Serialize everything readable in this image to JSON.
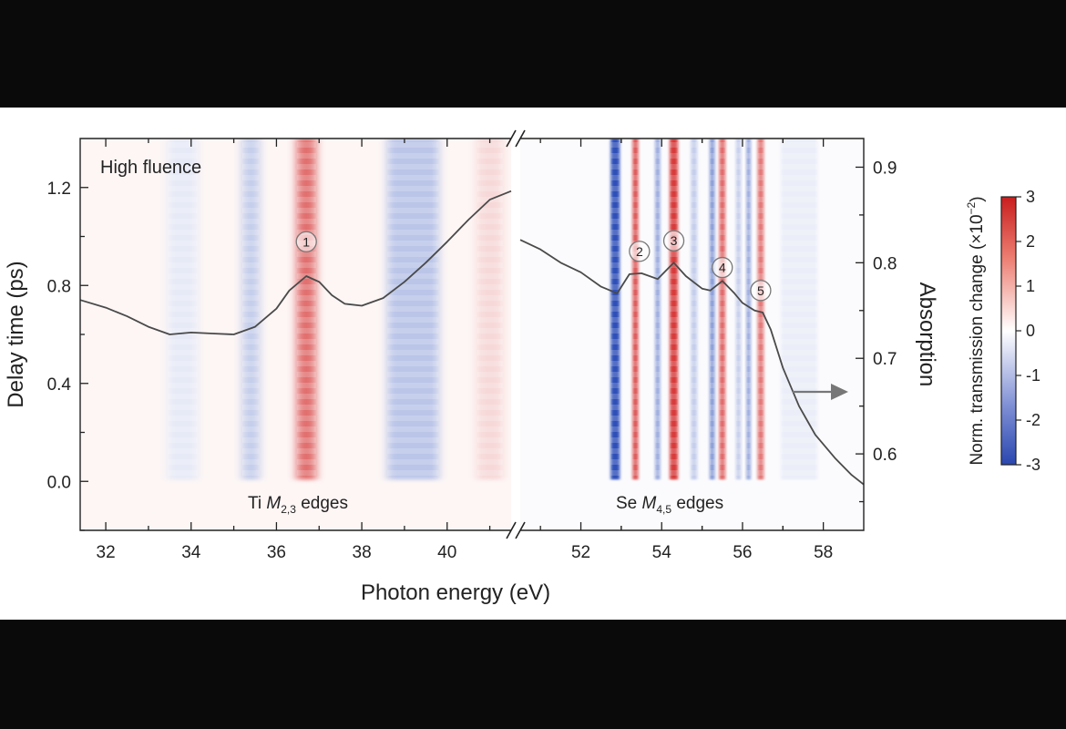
{
  "chart_data": {
    "type": "heatmap",
    "panel_label": "High fluence",
    "xlabel": "Photon energy (eV)",
    "ylabel": "Delay time (ps)",
    "y2label": "Absorption",
    "colorbar_label": "Norm. transmission change (×10",
    "colorbar_exponent": "−2",
    "colorbar_label_close": ")",
    "edge_labels": {
      "ti": {
        "prefix": "Ti ",
        "symbol": "M",
        "sub": "2,3",
        "suffix": " edges"
      },
      "se": {
        "prefix": "Se ",
        "symbol": "M",
        "sub": "4,5",
        "suffix": " edges"
      }
    },
    "axes": {
      "x_left": {
        "range": [
          31.4,
          41.5
        ],
        "ticks": [
          32,
          34,
          36,
          38,
          40
        ],
        "tick_labels": [
          "32",
          "34",
          "36",
          "38",
          "40"
        ]
      },
      "x_right": {
        "range": [
          50.5,
          59.0
        ],
        "ticks": [
          52,
          54,
          56,
          58
        ],
        "tick_labels": [
          "52",
          "54",
          "56",
          "58"
        ]
      },
      "y": {
        "range": [
          -0.2,
          1.4
        ],
        "ticks": [
          0.0,
          0.4,
          0.8,
          1.2
        ],
        "tick_labels": [
          "0.0",
          "0.4",
          "0.8",
          "1.2"
        ]
      },
      "y2": {
        "range": [
          0.52,
          0.93
        ],
        "ticks": [
          0.6,
          0.7,
          0.8,
          0.9
        ],
        "tick_labels": [
          "0.6",
          "0.7",
          "0.8",
          "0.9"
        ]
      },
      "colorbar": {
        "range": [
          -3,
          3
        ],
        "ticks": [
          3,
          2,
          1,
          0,
          -1,
          -2,
          -3
        ],
        "tick_labels": [
          "3",
          "2",
          "1",
          "0",
          "-1",
          "-2",
          "-3"
        ]
      }
    },
    "bands": {
      "left": [
        {
          "e": 33.8,
          "v": -0.2,
          "w": 0.7
        },
        {
          "e": 35.4,
          "v": -0.6,
          "w": 0.4
        },
        {
          "e": 36.7,
          "v": 1.8,
          "w": 0.45
        },
        {
          "e": 39.2,
          "v": -0.7,
          "w": 1.2
        },
        {
          "e": 41.0,
          "v": 0.35,
          "w": 0.6
        }
      ],
      "right": [
        {
          "e": 52.85,
          "v": -2.8,
          "w": 0.22
        },
        {
          "e": 53.35,
          "v": 2.2,
          "w": 0.14
        },
        {
          "e": 53.9,
          "v": -1.2,
          "w": 0.12
        },
        {
          "e": 54.3,
          "v": 2.6,
          "w": 0.2
        },
        {
          "e": 54.8,
          "v": -0.6,
          "w": 0.15
        },
        {
          "e": 55.25,
          "v": -1.5,
          "w": 0.12
        },
        {
          "e": 55.5,
          "v": 1.9,
          "w": 0.15
        },
        {
          "e": 55.9,
          "v": -0.6,
          "w": 0.12
        },
        {
          "e": 56.15,
          "v": -1.3,
          "w": 0.1
        },
        {
          "e": 56.45,
          "v": 1.7,
          "w": 0.15
        },
        {
          "e": 57.4,
          "v": -0.15,
          "w": 0.9
        }
      ]
    },
    "absorption": {
      "left": {
        "x": [
          31.4,
          32.0,
          32.5,
          33.0,
          33.5,
          34.0,
          34.5,
          35.0,
          35.5,
          36.0,
          36.3,
          36.7,
          37.0,
          37.3,
          37.6,
          38.0,
          38.5,
          39.0,
          39.5,
          40.0,
          40.5,
          41.0,
          41.5
        ],
        "y": [
          0.761,
          0.753,
          0.744,
          0.733,
          0.725,
          0.727,
          0.726,
          0.725,
          0.733,
          0.752,
          0.771,
          0.786,
          0.78,
          0.766,
          0.757,
          0.755,
          0.763,
          0.78,
          0.8,
          0.822,
          0.845,
          0.866,
          0.875
        ]
      },
      "right": {
        "x": [
          50.5,
          51.0,
          51.5,
          52.0,
          52.5,
          52.9,
          53.2,
          53.5,
          53.9,
          54.3,
          54.6,
          55.0,
          55.2,
          55.5,
          55.8,
          56.0,
          56.3,
          56.5,
          56.7,
          57.0,
          57.4,
          57.8,
          58.3,
          58.7,
          59.0
        ],
        "y": [
          0.824,
          0.814,
          0.8,
          0.79,
          0.775,
          0.768,
          0.788,
          0.789,
          0.783,
          0.8,
          0.786,
          0.773,
          0.771,
          0.781,
          0.768,
          0.758,
          0.75,
          0.748,
          0.73,
          0.69,
          0.65,
          0.62,
          0.595,
          0.578,
          0.568
        ]
      }
    },
    "peaks": [
      {
        "label": "1",
        "x": 36.7,
        "y": 0.822
      },
      {
        "label": "2",
        "x": 53.45,
        "y": 0.812
      },
      {
        "label": "3",
        "x": 54.3,
        "y": 0.823
      },
      {
        "label": "4",
        "x": 55.5,
        "y": 0.795
      },
      {
        "label": "5",
        "x": 56.45,
        "y": 0.771
      }
    ]
  }
}
